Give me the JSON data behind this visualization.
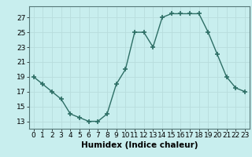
{
  "x": [
    0,
    1,
    2,
    3,
    4,
    5,
    6,
    7,
    8,
    9,
    10,
    11,
    12,
    13,
    14,
    15,
    16,
    17,
    18,
    19,
    20,
    21,
    22,
    23
  ],
  "y": [
    19,
    18,
    17,
    16,
    14,
    13.5,
    13,
    13,
    14,
    18,
    20,
    25,
    25,
    23,
    27,
    27.5,
    27.5,
    27.5,
    27.5,
    25,
    22,
    19,
    17.5,
    17
  ],
  "line_color": "#2d6e65",
  "marker_color": "#2d6e65",
  "bg_color": "#c8eeee",
  "grid_major_color": "#b8dddd",
  "grid_minor_color": "#d0eeee",
  "xlabel": "Humidex (Indice chaleur)",
  "xlim": [
    -0.5,
    23.5
  ],
  "ylim": [
    12,
    28.5
  ],
  "yticks": [
    13,
    15,
    17,
    19,
    21,
    23,
    25,
    27
  ],
  "xticks": [
    0,
    1,
    2,
    3,
    4,
    5,
    6,
    7,
    8,
    9,
    10,
    11,
    12,
    13,
    14,
    15,
    16,
    17,
    18,
    19,
    20,
    21,
    22,
    23
  ],
  "xlabel_fontsize": 7.5,
  "tick_fontsize": 6.5
}
